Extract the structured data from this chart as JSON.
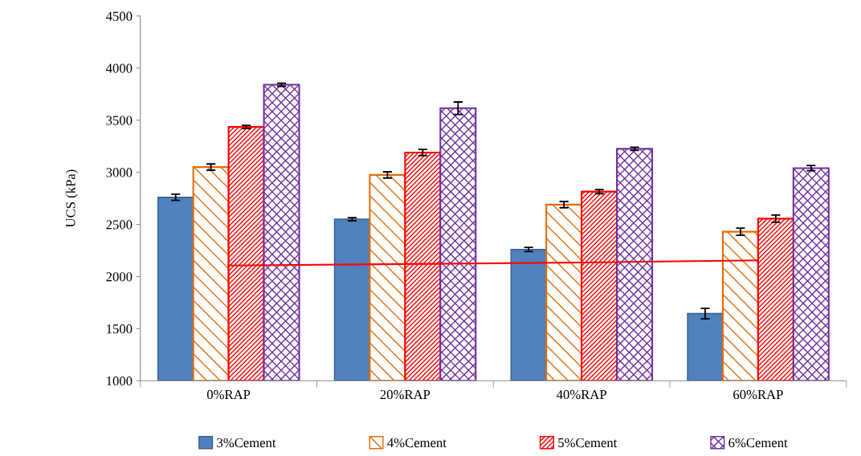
{
  "chart_data": {
    "type": "bar",
    "ylabel": "UCS (kPa)",
    "categories": [
      "0%RAP",
      "20%RAP",
      "40%RAP",
      "60%RAP"
    ],
    "series": [
      {
        "name": "3%Cement",
        "color": "#4f81bd",
        "values": [
          2760,
          2550,
          2260,
          1645
        ],
        "errors": [
          30,
          15,
          20,
          50
        ]
      },
      {
        "name": "4%Cement",
        "color": "#e36c09",
        "values": [
          3050,
          2975,
          2690,
          2430
        ],
        "errors": [
          30,
          30,
          30,
          35
        ]
      },
      {
        "name": "5%Cement",
        "color": "#ff0000",
        "values": [
          3435,
          3190,
          2815,
          2555
        ],
        "errors": [
          15,
          30,
          20,
          35
        ]
      },
      {
        "name": "6%Cement",
        "color": "#7030a0",
        "values": [
          3840,
          3615,
          3225,
          3040
        ],
        "errors": [
          15,
          60,
          15,
          25
        ]
      },
      {
        "type": "line",
        "color": "#ff0000",
        "values": [
          2105,
          2120,
          2135,
          2155
        ]
      }
    ],
    "ylim": [
      1000,
      4500
    ],
    "yticks": [
      1000,
      1500,
      2000,
      2500,
      3000,
      3500,
      4000,
      4500
    ],
    "grid": false,
    "legend": "bottom"
  }
}
